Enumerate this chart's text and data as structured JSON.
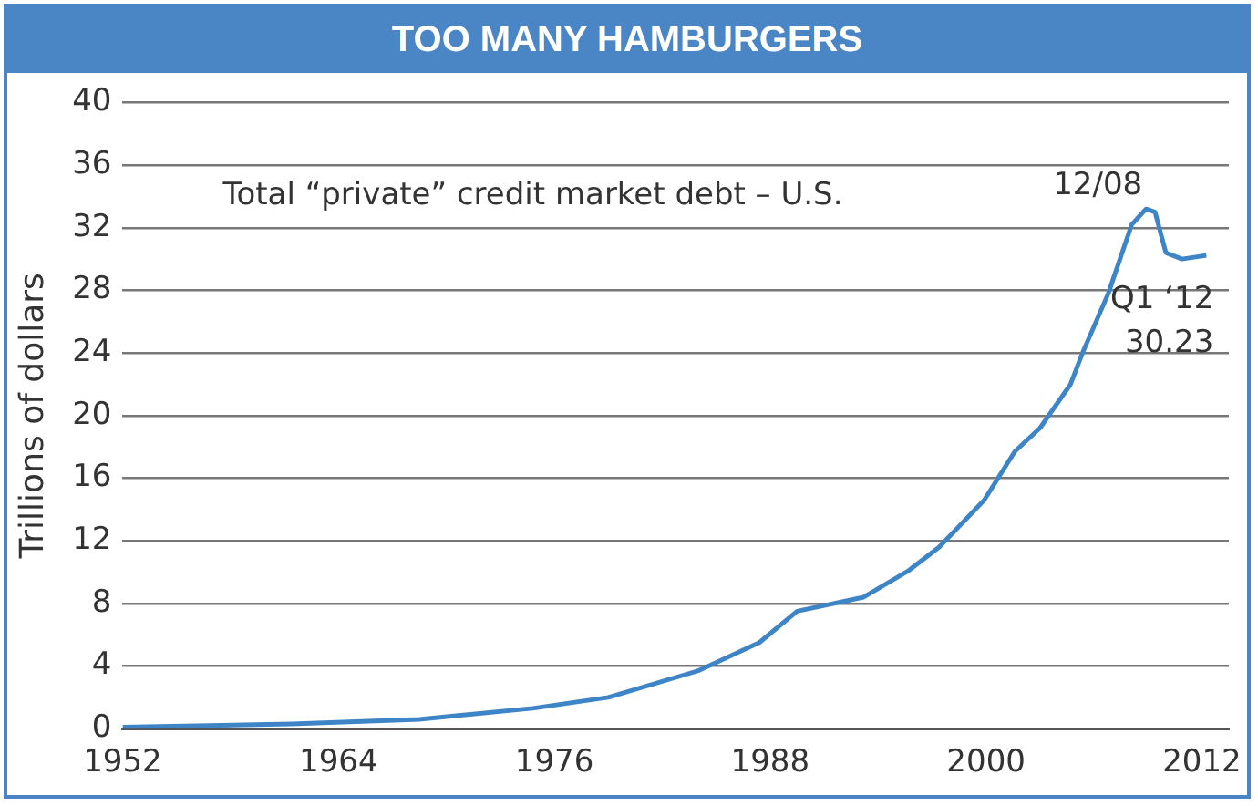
{
  "chart_data": {
    "type": "line",
    "title": "TOO MANY HAMBURGERS",
    "ylabel": "Trillions of dollars",
    "x": [
      1952,
      1961.4,
      1968.5,
      1974.8,
      1979,
      1984,
      1987.4,
      1989.5,
      1993.2,
      1995.7,
      1997.4,
      1999.9,
      2001.6,
      2003,
      2004.7,
      2005.4,
      2006.8,
      2008.1,
      2008.9,
      2009.4,
      2010,
      2010.9,
      2012.25
    ],
    "series": [
      {
        "color": "#3d85c6",
        "values": [
          0.1,
          0.3,
          0.6,
          1.3,
          2.0,
          3.7,
          5.5,
          7.5,
          8.4,
          10.1,
          11.6,
          14.6,
          17.7,
          19.2,
          22.0,
          24.1,
          27.8,
          32.2,
          33.2,
          33.0,
          30.4,
          30.0,
          30.23
        ]
      }
    ],
    "xlim": [
      1952,
      2013.5
    ],
    "xticks": [
      1952,
      1964,
      1976,
      1988,
      2000,
      2012
    ],
    "ylim": [
      0,
      40
    ],
    "yticks": [
      0,
      4,
      8,
      12,
      16,
      20,
      24,
      28,
      32,
      36,
      40
    ],
    "grid": "y",
    "legend": false,
    "marker": "none",
    "line_style": "solid",
    "annotations": [
      "Total “private” credit market debt – U.S.",
      {
        "text": "12/08",
        "x": 2008.9,
        "y": 33.2
      },
      {
        "text": "Q1 ‘12\n30.23",
        "x": 2012.25,
        "y": 30.23
      }
    ]
  }
}
